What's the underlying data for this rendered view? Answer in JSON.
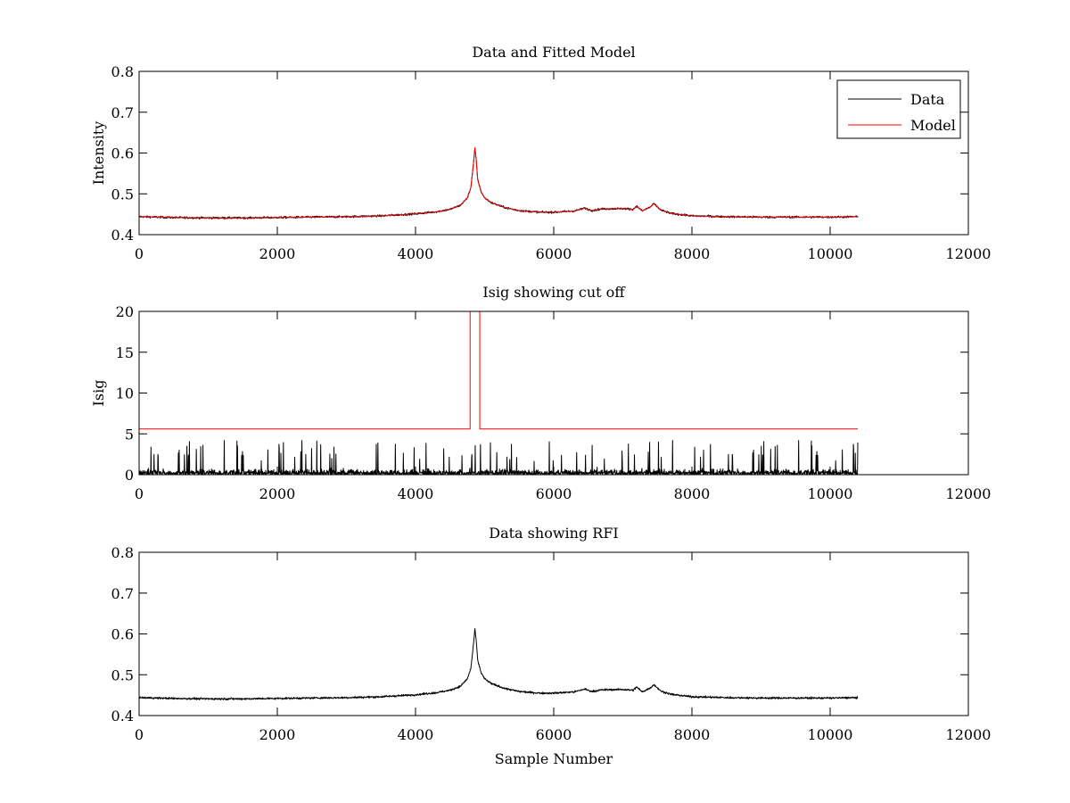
{
  "figure": {
    "background": "#ffffff"
  },
  "chart_data": [
    {
      "type": "line",
      "title": "Data and Fitted Model",
      "xlabel": "",
      "ylabel": "Intensity",
      "xlim": [
        0,
        12000
      ],
      "ylim": [
        0.4,
        0.8
      ],
      "xticks": [
        0,
        2000,
        4000,
        6000,
        8000,
        10000,
        12000
      ],
      "yticks": [
        0.4,
        0.5,
        0.6,
        0.7,
        0.8
      ],
      "xtick_labels": [
        "0",
        "2000",
        "4000",
        "6000",
        "8000",
        "10000",
        "12000"
      ],
      "ytick_labels": [
        "0.4",
        "0.5",
        "0.6",
        "0.7",
        "0.8"
      ],
      "grid": false,
      "legend": {
        "position": "top-right",
        "entries": [
          "Data",
          "Model"
        ]
      },
      "series": [
        {
          "name": "Data",
          "color": "#000000",
          "x": [
            0,
            500,
            1000,
            1500,
            2000,
            2500,
            3000,
            3500,
            4000,
            4300,
            4500,
            4650,
            4750,
            4800,
            4830,
            4860,
            4880,
            4900,
            4950,
            5000,
            5100,
            5300,
            5500,
            5800,
            6000,
            6300,
            6450,
            6550,
            6700,
            7000,
            7150,
            7200,
            7280,
            7400,
            7450,
            7550,
            7700,
            8000,
            8500,
            9000,
            9500,
            10000,
            10400
          ],
          "y": [
            0.444,
            0.442,
            0.441,
            0.441,
            0.442,
            0.443,
            0.444,
            0.446,
            0.451,
            0.456,
            0.462,
            0.472,
            0.49,
            0.515,
            0.56,
            0.612,
            0.58,
            0.535,
            0.505,
            0.49,
            0.478,
            0.466,
            0.459,
            0.455,
            0.455,
            0.458,
            0.465,
            0.459,
            0.463,
            0.464,
            0.462,
            0.47,
            0.458,
            0.468,
            0.476,
            0.46,
            0.452,
            0.446,
            0.444,
            0.443,
            0.443,
            0.443,
            0.444
          ],
          "noise_amplitude": 0.004
        },
        {
          "name": "Model",
          "color": "#ff0000",
          "x": [
            0,
            500,
            1000,
            1500,
            2000,
            2500,
            3000,
            3500,
            4000,
            4300,
            4500,
            4650,
            4750,
            4800,
            4830,
            4860,
            4880,
            4900,
            4950,
            5000,
            5100,
            5300,
            5500,
            5800,
            6000,
            6300,
            6450,
            6550,
            6700,
            7000,
            7150,
            7200,
            7280,
            7400,
            7450,
            7550,
            7700,
            8000,
            8500,
            9000,
            9500,
            10000,
            10400
          ],
          "y": [
            0.444,
            0.442,
            0.441,
            0.441,
            0.442,
            0.443,
            0.444,
            0.446,
            0.451,
            0.456,
            0.462,
            0.472,
            0.49,
            0.515,
            0.56,
            0.612,
            0.58,
            0.535,
            0.505,
            0.49,
            0.478,
            0.466,
            0.459,
            0.455,
            0.455,
            0.458,
            0.465,
            0.459,
            0.463,
            0.464,
            0.462,
            0.47,
            0.458,
            0.468,
            0.476,
            0.46,
            0.452,
            0.446,
            0.444,
            0.443,
            0.443,
            0.443,
            0.444
          ]
        }
      ]
    },
    {
      "type": "line",
      "title": "Isig showing cut off",
      "xlabel": "",
      "ylabel": "Isig",
      "xlim": [
        0,
        12000
      ],
      "ylim": [
        0,
        20
      ],
      "xticks": [
        0,
        2000,
        4000,
        6000,
        8000,
        10000,
        12000
      ],
      "yticks": [
        0,
        5,
        10,
        15,
        20
      ],
      "xtick_labels": [
        "0",
        "2000",
        "4000",
        "6000",
        "8000",
        "10000",
        "12000"
      ],
      "ytick_labels": [
        "0",
        "5",
        "10",
        "15",
        "20"
      ],
      "grid": false,
      "series": [
        {
          "color": "#000000",
          "x_range": [
            0,
            10400
          ],
          "mean": 0.8,
          "max": 4.2,
          "kind": "noise"
        },
        {
          "color": "#ff0000",
          "x": [
            0,
            4790,
            4790,
            4930,
            4930,
            10400
          ],
          "y": [
            5.6,
            5.6,
            20,
            20,
            5.6,
            5.6
          ]
        }
      ]
    },
    {
      "type": "line",
      "title": "Data showing RFI",
      "xlabel": "Sample Number",
      "ylabel": "",
      "xlim": [
        0,
        12000
      ],
      "ylim": [
        0.4,
        0.8
      ],
      "xticks": [
        0,
        2000,
        4000,
        6000,
        8000,
        10000,
        12000
      ],
      "yticks": [
        0.4,
        0.5,
        0.6,
        0.7,
        0.8
      ],
      "xtick_labels": [
        "0",
        "2000",
        "4000",
        "6000",
        "8000",
        "10000",
        "12000"
      ],
      "ytick_labels": [
        "0.4",
        "0.5",
        "0.6",
        "0.7",
        "0.8"
      ],
      "grid": false,
      "series": [
        {
          "color": "#000000",
          "x": [
            0,
            500,
            1000,
            1500,
            2000,
            2500,
            3000,
            3500,
            4000,
            4300,
            4500,
            4650,
            4750,
            4800,
            4830,
            4860,
            4880,
            4900,
            4950,
            5000,
            5100,
            5300,
            5500,
            5800,
            6000,
            6300,
            6450,
            6550,
            6700,
            7000,
            7150,
            7200,
            7280,
            7400,
            7450,
            7550,
            7700,
            8000,
            8500,
            9000,
            9500,
            10000,
            10400
          ],
          "y": [
            0.444,
            0.442,
            0.441,
            0.441,
            0.442,
            0.443,
            0.444,
            0.446,
            0.451,
            0.456,
            0.462,
            0.472,
            0.49,
            0.515,
            0.56,
            0.612,
            0.58,
            0.535,
            0.505,
            0.49,
            0.478,
            0.466,
            0.459,
            0.455,
            0.455,
            0.458,
            0.465,
            0.459,
            0.463,
            0.464,
            0.462,
            0.47,
            0.458,
            0.468,
            0.476,
            0.46,
            0.452,
            0.446,
            0.444,
            0.443,
            0.443,
            0.443,
            0.444
          ],
          "noise_amplitude": 0.004
        }
      ]
    }
  ]
}
